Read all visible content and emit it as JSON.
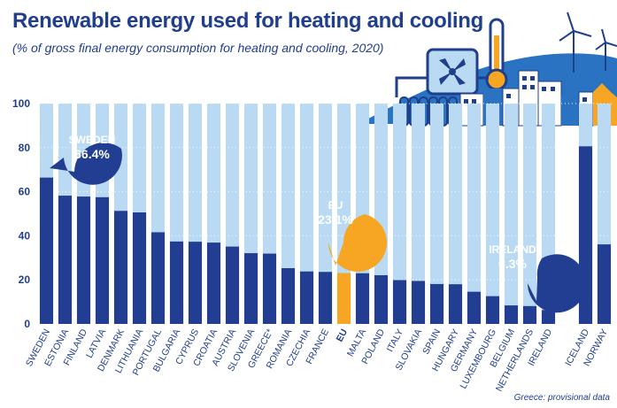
{
  "title": "Renewable energy used for heating and cooling",
  "subtitle": "(% of gross final energy consumption for heating and cooling, 2020)",
  "footnote": "Greece: provisional data",
  "colors": {
    "bar": "#213e92",
    "eu_bar": "#f6a623",
    "bar_background": "#b9daf2",
    "title": "#1f3e8c",
    "decoration": "#2a72c2"
  },
  "callouts": [
    {
      "name": "SWEDEN",
      "value": "66.4%",
      "color": "#213e92"
    },
    {
      "name": "EU",
      "value": "23.1%",
      "color": "#f6a623"
    },
    {
      "name": "IRELAND",
      "value": "6.3%",
      "color": "#213e92"
    }
  ],
  "chart_data": {
    "type": "bar",
    "title": "Renewable energy used for heating and cooling",
    "ylim": [
      0,
      100
    ],
    "yticks": [
      "0",
      "20",
      "40",
      "60",
      "80",
      "100"
    ],
    "grid": true,
    "categories": [
      "SWEDEN",
      "ESTONIA",
      "FINLAND",
      "LATVIA",
      "DENMARK",
      "LITHUANIA",
      "PORTUGAL",
      "BULGARIA",
      "CYPRUS",
      "CROATIA",
      "AUSTRIA",
      "SLOVENIA",
      "GREECE*",
      "ROMANIA",
      "CZECHIA",
      "FRANCE",
      "EU",
      "MALTA",
      "POLAND",
      "ITALY",
      "SLOVAKIA",
      "SPAIN",
      "HUNGARY",
      "GERMANY",
      "LUXEMBOURG",
      "BELGIUM",
      "NETHERLANDS",
      "IRELAND",
      "",
      "ICELAND",
      "NORWAY"
    ],
    "values": [
      66.4,
      58.2,
      57.8,
      57.5,
      51.3,
      50.6,
      41.6,
      37.4,
      37.3,
      36.9,
      35.1,
      32.1,
      31.9,
      25.3,
      23.8,
      23.6,
      23.1,
      23.0,
      22.1,
      19.9,
      19.5,
      18.1,
      18.0,
      14.6,
      12.6,
      8.4,
      8.1,
      6.3,
      null,
      80.6,
      36.1
    ],
    "highlight": "EU"
  }
}
